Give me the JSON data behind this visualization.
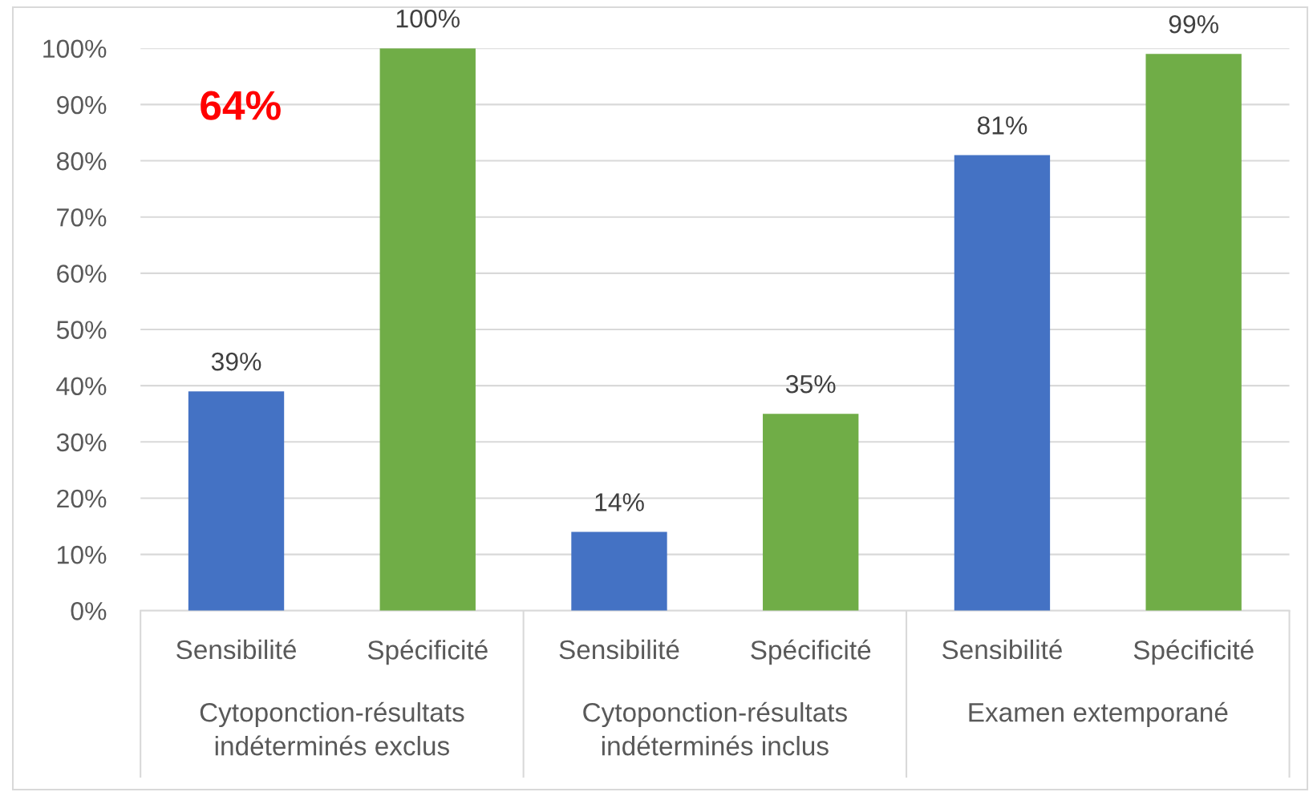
{
  "chart_data": {
    "type": "bar",
    "categories": [
      "Cytoponction-résultats\nindéterminés exclus",
      "Cytoponction-résultats\nindéterminés inclus",
      "Examen extemporané"
    ],
    "series": [
      {
        "name": "Sensibilité",
        "color": "#4472c4",
        "values": [
          39,
          14,
          81
        ],
        "value_labels": [
          "39%",
          "14%",
          "81%"
        ]
      },
      {
        "name": "Spécificité",
        "color": "#70ad47",
        "values": [
          100,
          35,
          99
        ],
        "value_labels": [
          "100%",
          "35%",
          "99%"
        ]
      }
    ],
    "ylim": [
      0,
      100
    ],
    "yticks": [
      {
        "value": 0,
        "label": "0%"
      },
      {
        "value": 10,
        "label": "10%"
      },
      {
        "value": 20,
        "label": "20%"
      },
      {
        "value": 30,
        "label": "30%"
      },
      {
        "value": 40,
        "label": "40%"
      },
      {
        "value": 50,
        "label": "50%"
      },
      {
        "value": 60,
        "label": "60%"
      },
      {
        "value": 70,
        "label": "70%"
      },
      {
        "value": 80,
        "label": "80%"
      },
      {
        "value": 90,
        "label": "90%"
      },
      {
        "value": 100,
        "label": "100%"
      }
    ],
    "grid": "y",
    "annotations": [
      "64%"
    ]
  }
}
